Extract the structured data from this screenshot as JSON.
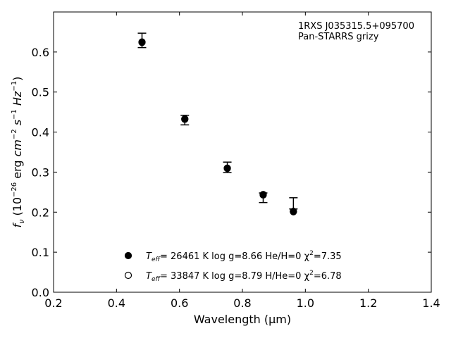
{
  "chart_data": {
    "type": "scatter",
    "xlabel": "Wavelength (μm)",
    "ylabel": "f_ν (10^-26 erg cm^-2 s^-1 Hz^-1)",
    "xlim": [
      0.2,
      1.4
    ],
    "ylim": [
      0.0,
      0.7
    ],
    "x_ticks": [
      "0.2",
      "0.4",
      "0.6",
      "0.8",
      "1.0",
      "1.2",
      "1.4"
    ],
    "y_ticks": [
      "0.0",
      "0.1",
      "0.2",
      "0.3",
      "0.4",
      "0.5",
      "0.6"
    ],
    "grid": false,
    "annotations": [
      "1RXS J035315.5+095700",
      "Pan-STARRS grizy"
    ],
    "observed": {
      "x": [
        0.481,
        0.617,
        0.752,
        0.866,
        0.962
      ],
      "y": [
        0.629,
        0.43,
        0.312,
        0.236,
        0.222
      ],
      "yerr": [
        0.018,
        0.012,
        0.013,
        0.012,
        0.014
      ]
    },
    "series": [
      {
        "marker": "filled-circle",
        "legend_parts": {
          "teff": "T",
          "teff_sub": "eff",
          "rest": "= 26461 K  log g=8.66  He/H=0  χ",
          "chi_sup": "2",
          "chi_val": "=7.35"
        },
        "x": [
          0.481,
          0.617,
          0.752,
          0.866,
          0.962
        ],
        "y": [
          0.624,
          0.432,
          0.309,
          0.243,
          0.201
        ]
      },
      {
        "marker": "open-circle",
        "legend_parts": {
          "teff": "T",
          "teff_sub": "eff",
          "rest": "= 33847 K  log g=8.79  H/He=0  χ",
          "chi_sup": "2",
          "chi_val": "=6.78"
        },
        "x": [
          0.481,
          0.617,
          0.752,
          0.866,
          0.962
        ],
        "y": [
          0.625,
          0.433,
          0.31,
          0.244,
          0.202
        ]
      }
    ]
  }
}
